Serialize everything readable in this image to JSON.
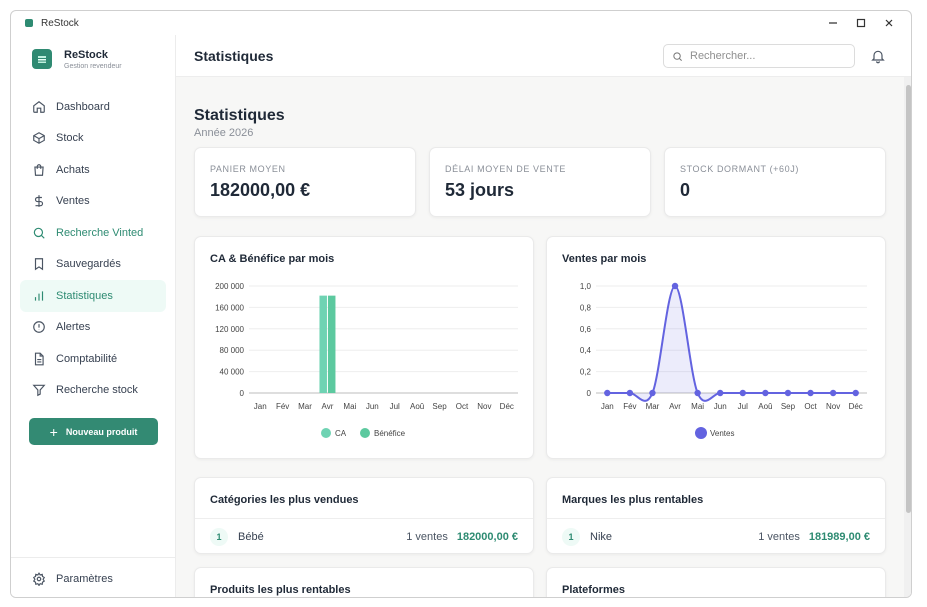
{
  "window": {
    "title": "ReStock"
  },
  "brand": {
    "name": "ReStock",
    "subtitle": "Gestion revendeur"
  },
  "sidebar": {
    "items": [
      {
        "label": "Dashboard",
        "icon": "home-icon"
      },
      {
        "label": "Stock",
        "icon": "box-icon"
      },
      {
        "label": "Achats",
        "icon": "shopping-bag-icon"
      },
      {
        "label": "Ventes",
        "icon": "dollar-icon"
      },
      {
        "label": "Recherche Vinted",
        "icon": "search-icon"
      },
      {
        "label": "Sauvegardés",
        "icon": "bookmark-icon"
      },
      {
        "label": "Statistiques",
        "icon": "bar-chart-icon",
        "active": true
      },
      {
        "label": "Alertes",
        "icon": "alert-circle-icon"
      },
      {
        "label": "Comptabilité",
        "icon": "file-text-icon"
      },
      {
        "label": "Recherche stock",
        "icon": "filter-icon"
      }
    ],
    "new_product_label": "Nouveau produit",
    "settings_label": "Paramètres"
  },
  "header": {
    "title": "Statistiques",
    "search_placeholder": "Rechercher..."
  },
  "page": {
    "title": "Statistiques",
    "subtitle": "Année 2026"
  },
  "stats": [
    {
      "label": "PANIER MOYEN",
      "value": "182000,00 €"
    },
    {
      "label": "DÉLAI MOYEN DE VENTE",
      "value": "53 jours"
    },
    {
      "label": "STOCK DORMANT (+60J)",
      "value": "0"
    }
  ],
  "colors": {
    "accent": "#2e8b72",
    "ca": "#6fd3b3",
    "benefice": "#5cc99f",
    "ventes": "#6363e0"
  },
  "chart_data": [
    {
      "type": "bar",
      "title": "CA & Bénéfice par mois",
      "categories": [
        "Jan",
        "Fév",
        "Mar",
        "Avr",
        "Mai",
        "Jun",
        "Jul",
        "Aoû",
        "Sep",
        "Oct",
        "Nov",
        "Déc"
      ],
      "series": [
        {
          "name": "CA",
          "values": [
            0,
            0,
            0,
            182000,
            0,
            0,
            0,
            0,
            0,
            0,
            0,
            0
          ]
        },
        {
          "name": "Bénéfice",
          "values": [
            0,
            0,
            0,
            181989,
            0,
            0,
            0,
            0,
            0,
            0,
            0,
            0
          ]
        }
      ],
      "yticks": [
        "200 000",
        "160 000",
        "120 000",
        "80 000",
        "40 000",
        "0"
      ],
      "ylim": [
        0,
        200000
      ],
      "grid": true,
      "legend": "bottom"
    },
    {
      "type": "line",
      "title": "Ventes par mois",
      "categories": [
        "Jan",
        "Fév",
        "Mar",
        "Avr",
        "Mai",
        "Jun",
        "Jul",
        "Aoû",
        "Sep",
        "Oct",
        "Nov",
        "Déc"
      ],
      "series": [
        {
          "name": "Ventes",
          "values": [
            0,
            0,
            0,
            1,
            0,
            0,
            0,
            0,
            0,
            0,
            0,
            0
          ]
        }
      ],
      "yticks": [
        "1,0",
        "0,8",
        "0,6",
        "0,4",
        "0,2",
        "0"
      ],
      "ylim": [
        0,
        1
      ],
      "grid": true,
      "legend": "bottom"
    }
  ],
  "categories_card": {
    "title": "Catégories les plus vendues",
    "rows": [
      {
        "rank": "1",
        "name": "Bébé",
        "count": "1 ventes",
        "amount": "182000,00 €"
      }
    ]
  },
  "brands_card": {
    "title": "Marques les plus rentables",
    "rows": [
      {
        "rank": "1",
        "name": "Nike",
        "count": "1 ventes",
        "amount": "181989,00 €"
      }
    ]
  },
  "products_card": {
    "title": "Produits les plus rentables"
  },
  "platforms_card": {
    "title": "Plateformes"
  }
}
